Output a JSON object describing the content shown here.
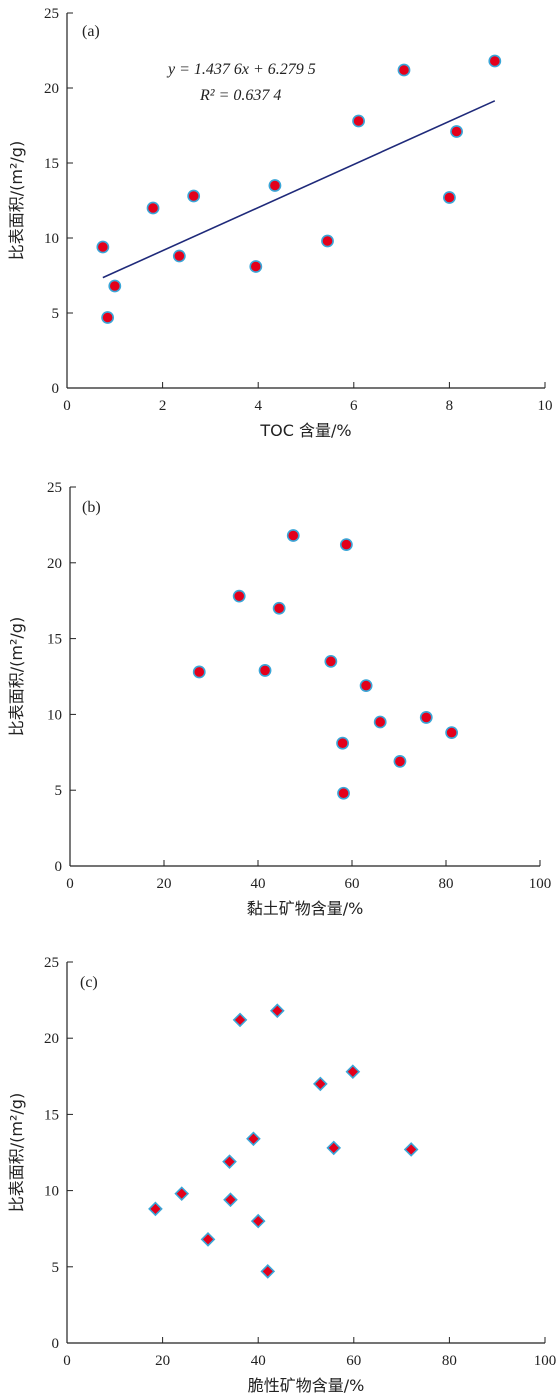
{
  "colors": {
    "marker_fill": "#e3001b",
    "marker_edge": "#3aa6d8",
    "fit_line": "#1f2a7a",
    "axis": "#222222"
  },
  "chart_data": [
    {
      "type": "scatter",
      "panel_label": "(a)",
      "xlabel": "TOC 含量/%",
      "ylabel": "比表面积/(m²/g)",
      "xlim": [
        0,
        10
      ],
      "ylim": [
        0,
        25
      ],
      "xticks": [
        0,
        2,
        4,
        6,
        8,
        10
      ],
      "yticks": [
        0,
        5,
        10,
        15,
        20,
        25
      ],
      "marker": "circle",
      "points": [
        [
          0.75,
          9.4
        ],
        [
          0.85,
          4.7
        ],
        [
          1.0,
          6.8
        ],
        [
          1.8,
          12.0
        ],
        [
          2.35,
          8.8
        ],
        [
          2.65,
          12.8
        ],
        [
          3.95,
          8.1
        ],
        [
          4.35,
          13.5
        ],
        [
          5.45,
          9.8
        ],
        [
          6.1,
          17.8
        ],
        [
          7.05,
          21.2
        ],
        [
          8.0,
          12.7
        ],
        [
          8.15,
          17.1
        ],
        [
          8.95,
          21.8
        ]
      ],
      "fit": {
        "slope": 1.4376,
        "intercept": 6.2795,
        "x_range": [
          0.75,
          8.95
        ],
        "equation": "y = 1.437 6x + 6.279 5",
        "r2_label": "R² = 0.637 4"
      }
    },
    {
      "type": "scatter",
      "panel_label": "(b)",
      "xlabel": "黏土矿物含量/%",
      "ylabel": "比表面积/(m²/g)",
      "xlim": [
        0,
        100
      ],
      "ylim": [
        0,
        25
      ],
      "xticks": [
        0,
        20,
        40,
        60,
        80,
        100
      ],
      "yticks": [
        0,
        5,
        10,
        15,
        20,
        25
      ],
      "marker": "circle",
      "points": [
        [
          27.5,
          12.8
        ],
        [
          36,
          17.8
        ],
        [
          41.5,
          12.9
        ],
        [
          44.5,
          17.0
        ],
        [
          47.5,
          21.8
        ],
        [
          55.5,
          13.5
        ],
        [
          58,
          8.1
        ],
        [
          58.2,
          4.8
        ],
        [
          58.8,
          21.2
        ],
        [
          63,
          11.9
        ],
        [
          66,
          9.5
        ],
        [
          70.2,
          6.9
        ],
        [
          75.8,
          9.8
        ],
        [
          81.2,
          8.8
        ]
      ]
    },
    {
      "type": "scatter",
      "panel_label": "(c)",
      "xlabel": "脆性矿物含量/%",
      "ylabel": "比表面积/(m²/g)",
      "xlim": [
        0,
        100
      ],
      "ylim": [
        0,
        25
      ],
      "xticks": [
        0,
        20,
        40,
        60,
        80,
        100
      ],
      "yticks": [
        0,
        5,
        10,
        15,
        20,
        25
      ],
      "marker": "diamond",
      "points": [
        [
          18.5,
          8.8
        ],
        [
          24,
          9.8
        ],
        [
          29.5,
          6.8
        ],
        [
          34,
          11.9
        ],
        [
          34.2,
          9.4
        ],
        [
          36.2,
          21.2
        ],
        [
          39,
          13.4
        ],
        [
          40,
          8.0
        ],
        [
          42,
          4.7
        ],
        [
          44,
          21.8
        ],
        [
          53,
          17.0
        ],
        [
          55.8,
          12.8
        ],
        [
          59.8,
          17.8
        ],
        [
          72,
          12.7
        ]
      ]
    }
  ]
}
